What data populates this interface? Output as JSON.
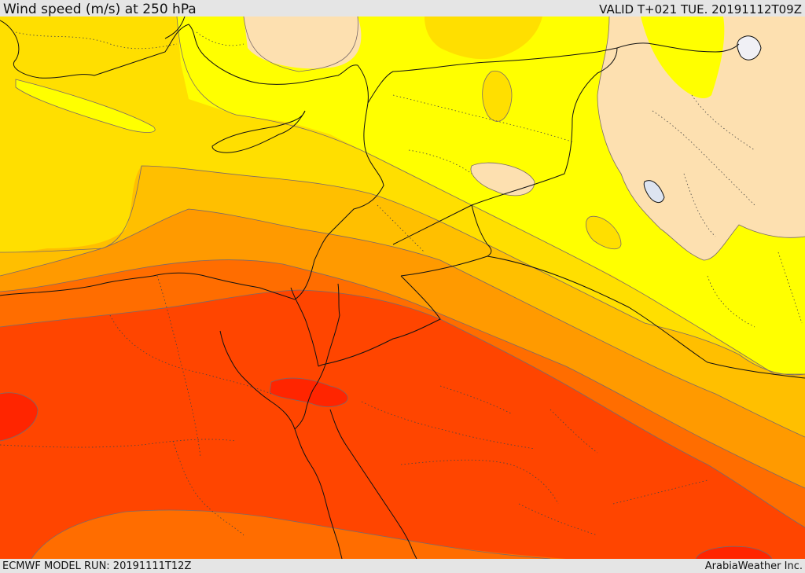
{
  "header": {
    "title": "Wind speed (m/s) at 250 hPa",
    "valid_time": "VALID T+021 TUE. 20191112T09Z"
  },
  "footer": {
    "model_run": "ECMWF MODEL RUN: 20191111T12Z",
    "credit": "ArabiaWeather Inc."
  },
  "map": {
    "colors": {
      "lightest": "#fde0b0",
      "band_1": "#ffff00",
      "band_2": "#ffdf00",
      "band_3": "#ffbf00",
      "band_4": "#ff9a00",
      "band_5": "#ff6d00",
      "band_6": "#ff4500",
      "band_7": "#ff2500",
      "lake": "#dde4f0"
    }
  }
}
